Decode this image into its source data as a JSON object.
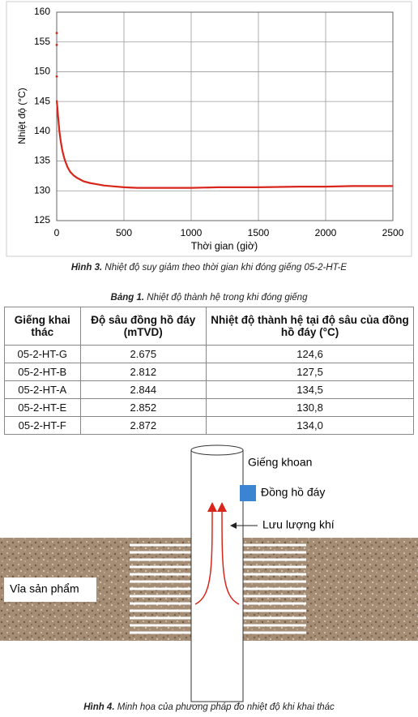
{
  "chart_data": {
    "type": "line",
    "ylabel": "Nhiệt độ (°C)",
    "xlabel": "Thời gian (giờ)",
    "x": [
      0,
      5,
      10,
      20,
      30,
      40,
      50,
      60,
      80,
      100,
      125,
      150,
      200,
      250,
      300,
      350,
      400,
      500,
      600,
      800,
      1000,
      1200,
      1500,
      1800,
      2000,
      2200,
      2500
    ],
    "values": [
      145.2,
      144,
      142.5,
      140,
      138.3,
      137,
      136,
      135.2,
      134,
      133.2,
      132.6,
      132.2,
      131.6,
      131.3,
      131.1,
      130.9,
      130.8,
      130.6,
      130.5,
      130.5,
      130.5,
      130.6,
      130.6,
      130.7,
      130.7,
      130.8,
      130.8
    ],
    "outliers": {
      "x": [
        0,
        0,
        0
      ],
      "values": [
        156.5,
        154.5,
        149.2
      ]
    },
    "color": "#d9261c",
    "xlim": [
      0,
      2500
    ],
    "xticks": [
      0,
      500,
      1000,
      1500,
      2000,
      2500
    ],
    "ylim": [
      125,
      160
    ],
    "yticks": [
      125,
      130,
      135,
      140,
      145,
      150,
      155,
      160
    ],
    "grid": true
  },
  "figure3_caption": {
    "label": "Hình 3.",
    "text": "Nhiệt độ suy giảm theo thời gian khi đóng giếng 05-2-HT-E"
  },
  "table": {
    "caption": {
      "label": "Bảng 1.",
      "text": "Nhiệt độ thành hệ trong khi đóng giếng"
    },
    "header": [
      "Giếng khai thác",
      "Độ sâu đồng hồ đáy (mTVD)",
      "Nhiệt độ thành hệ tại độ sâu của đồng hồ đáy (°C)"
    ],
    "rows": [
      [
        "05-2-HT-G",
        "2.675",
        "124,6"
      ],
      [
        "05-2-HT-B",
        "2.812",
        "127,5"
      ],
      [
        "05-2-HT-A",
        "2.844",
        "134,5"
      ],
      [
        "05-2-HT-E",
        "2.852",
        "130,8"
      ],
      [
        "05-2-HT-F",
        "2.872",
        "134,0"
      ]
    ]
  },
  "figure4": {
    "labels": {
      "well": "Giếng khoan",
      "gauge": "Đồng hồ đáy",
      "flow": "Lưu lượng khí",
      "reservoir": "Vỉa sản phẩm"
    },
    "caption": {
      "label": "Hình 4.",
      "text": "Minh họa của phương pháp đo nhiệt độ khi khai thác"
    }
  }
}
